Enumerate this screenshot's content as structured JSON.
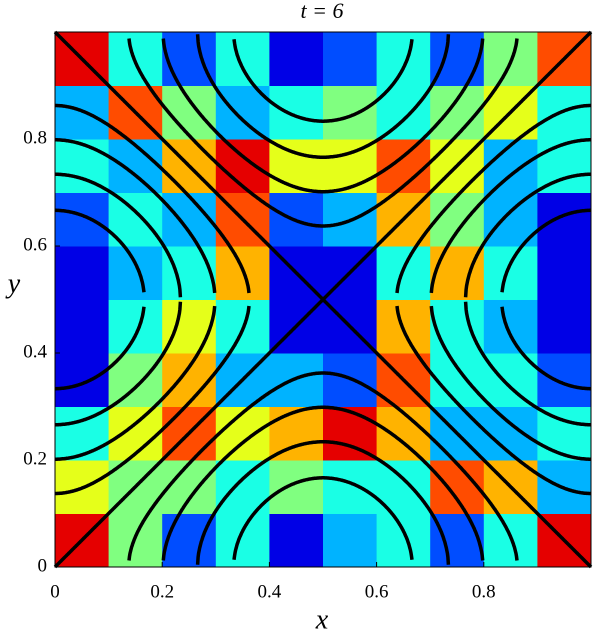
{
  "chart_data": {
    "type": "heatmap",
    "title": "t = 6",
    "x_label": "x",
    "y_label": "y",
    "xlim": [
      0,
      1
    ],
    "ylim": [
      0,
      1
    ],
    "xticks": [
      0,
      0.2,
      0.4,
      0.6,
      0.8
    ],
    "yticks": [
      0,
      0.2,
      0.4,
      0.6,
      0.8
    ],
    "colormap": "jet",
    "z": [
      [
        0.9,
        0.5,
        0.2,
        0.4,
        0.1,
        0.3,
        0.4,
        0.2,
        0.4,
        0.9
      ],
      [
        0.6,
        0.5,
        0.5,
        0.4,
        0.5,
        0.4,
        0.4,
        0.8,
        0.7,
        0.3
      ],
      [
        0.4,
        0.6,
        0.8,
        0.6,
        0.7,
        0.9,
        0.7,
        0.3,
        0.3,
        0.4
      ],
      [
        0.1,
        0.5,
        0.7,
        0.3,
        0.3,
        0.2,
        0.8,
        0.4,
        0.4,
        0.2
      ],
      [
        0.1,
        0.4,
        0.6,
        0.4,
        0.1,
        0.1,
        0.7,
        0.4,
        0.3,
        0.1
      ],
      [
        0.1,
        0.3,
        0.4,
        0.7,
        0.1,
        0.1,
        0.4,
        0.7,
        0.4,
        0.1
      ],
      [
        0.2,
        0.4,
        0.3,
        0.8,
        0.2,
        0.3,
        0.7,
        0.5,
        0.3,
        0.1
      ],
      [
        0.4,
        0.3,
        0.7,
        0.9,
        0.6,
        0.6,
        0.8,
        0.6,
        0.3,
        0.4
      ],
      [
        0.3,
        0.8,
        0.5,
        0.3,
        0.4,
        0.5,
        0.4,
        0.5,
        0.6,
        0.4
      ],
      [
        0.9,
        0.4,
        0.2,
        0.4,
        0.1,
        0.2,
        0.4,
        0.2,
        0.5,
        0.8
      ]
    ],
    "contour_levels": [
      -1.5,
      -1.1,
      -0.7,
      -0.35,
      0,
      0.35,
      0.7,
      1.1,
      1.5
    ],
    "contour_color": "#000000"
  }
}
